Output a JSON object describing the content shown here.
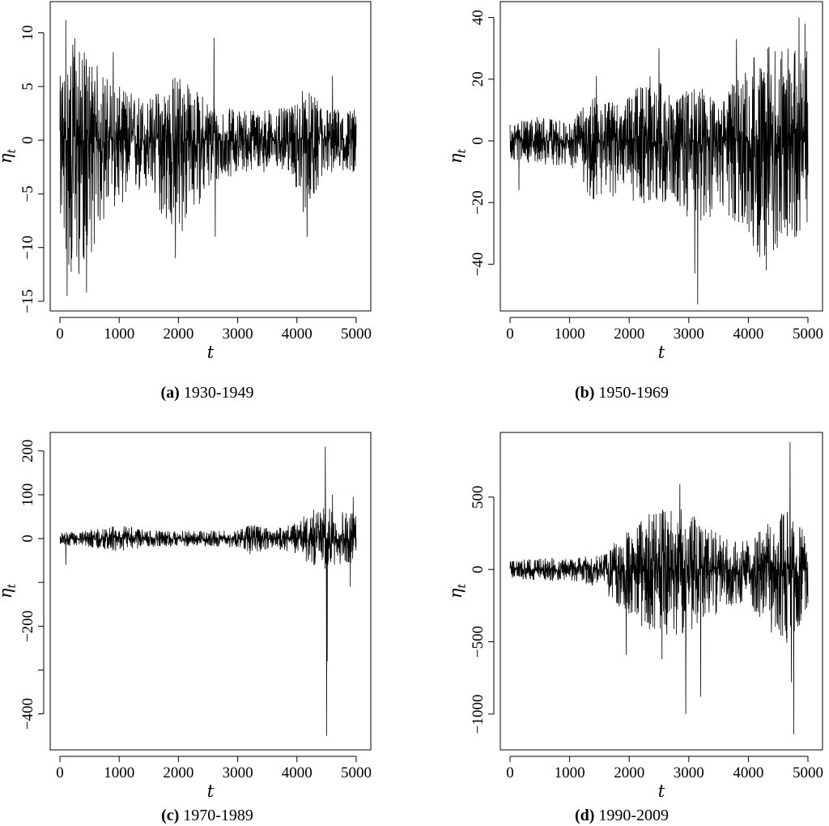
{
  "chart_data": [
    {
      "type": "line",
      "panel_letter": "(a)",
      "caption": "1930-1949",
      "xlabel": "t",
      "ylabel": "η",
      "ylabel_sub": "t",
      "xlim": [
        0,
        5000
      ],
      "ylim": [
        -15,
        12
      ],
      "xticks": [
        0,
        1000,
        2000,
        3000,
        4000,
        5000
      ],
      "yticks": [
        -15,
        -10,
        -5,
        0,
        5,
        10
      ],
      "ytick_labels": [
        "−15",
        "−10",
        "−5",
        "0",
        "5",
        "10"
      ],
      "envelope": {
        "t": [
          0,
          200,
          500,
          800,
          1000,
          1500,
          1900,
          2000,
          2200,
          2500,
          2700,
          3000,
          3500,
          3900,
          4100,
          4300,
          4600,
          5000
        ],
        "upper": [
          6,
          9,
          8,
          6,
          5,
          4,
          6,
          7,
          5,
          4,
          3,
          3,
          3,
          3,
          5,
          4,
          3,
          3
        ],
        "lower": [
          -8,
          -14,
          -11,
          -7,
          -6,
          -5,
          -9,
          -10,
          -7,
          -5,
          -4,
          -3,
          -3,
          -3,
          -7,
          -5,
          -3,
          -3
        ]
      },
      "spikes": [
        [
          100,
          11.2
        ],
        [
          120,
          -14.5
        ],
        [
          250,
          9.5
        ],
        [
          450,
          -14.2
        ],
        [
          900,
          8.2
        ],
        [
          1950,
          -11
        ],
        [
          2600,
          9.5
        ],
        [
          2620,
          -9
        ],
        [
          4170,
          -9
        ],
        [
          4600,
          6
        ]
      ]
    },
    {
      "type": "line",
      "panel_letter": "(b)",
      "caption": "1950-1969",
      "xlabel": "t",
      "ylabel": "η",
      "ylabel_sub": "t",
      "xlim": [
        0,
        5000
      ],
      "ylim": [
        -52,
        42
      ],
      "xticks": [
        0,
        1000,
        2000,
        3000,
        4000,
        5000
      ],
      "yticks": [
        -40,
        -20,
        0,
        20,
        40
      ],
      "ytick_labels": [
        "−40",
        "−20",
        "0",
        "20",
        "40"
      ],
      "envelope": {
        "t": [
          0,
          500,
          1000,
          1400,
          1800,
          2400,
          2800,
          3100,
          3500,
          3900,
          4200,
          4600,
          5000
        ],
        "upper": [
          6,
          8,
          6,
          15,
          12,
          22,
          15,
          20,
          12,
          25,
          30,
          32,
          30
        ],
        "lower": [
          -6,
          -8,
          -8,
          -20,
          -18,
          -22,
          -20,
          -30,
          -22,
          -30,
          -38,
          -35,
          -30
        ]
      },
      "spikes": [
        [
          150,
          -16
        ],
        [
          1450,
          21
        ],
        [
          2500,
          30
        ],
        [
          3150,
          -53
        ],
        [
          3100,
          -43
        ],
        [
          3800,
          33
        ],
        [
          4300,
          -42
        ],
        [
          4850,
          40
        ],
        [
          4950,
          38
        ]
      ]
    },
    {
      "type": "line",
      "panel_letter": "(c)",
      "caption": "1970-1989",
      "xlabel": "t",
      "ylabel": "η",
      "ylabel_sub": "t",
      "xlim": [
        0,
        5000
      ],
      "ylim": [
        -460,
        220
      ],
      "xticks": [
        0,
        1000,
        2000,
        3000,
        4000,
        5000
      ],
      "yticks": [
        -400,
        -300,
        -200,
        -100,
        0,
        100,
        200
      ],
      "ytick_labels": [
        "−400",
        "",
        "−200",
        "",
        "0",
        "100",
        "200"
      ],
      "envelope": {
        "t": [
          0,
          500,
          1000,
          1500,
          2000,
          2500,
          3000,
          3200,
          3600,
          4000,
          4300,
          4600,
          5000
        ],
        "upper": [
          15,
          20,
          30,
          20,
          18,
          18,
          20,
          35,
          20,
          40,
          70,
          70,
          60
        ],
        "lower": [
          -15,
          -20,
          -30,
          -20,
          -18,
          -18,
          -20,
          -40,
          -20,
          -40,
          -70,
          -70,
          -60
        ]
      },
      "spikes": [
        [
          100,
          -60
        ],
        [
          4480,
          210
        ],
        [
          4500,
          -450
        ],
        [
          4510,
          -280
        ],
        [
          4600,
          100
        ],
        [
          4900,
          -110
        ],
        [
          4950,
          95
        ]
      ]
    },
    {
      "type": "line",
      "panel_letter": "(d)",
      "caption": "1990-2009",
      "xlabel": "t",
      "ylabel": "η",
      "ylabel_sub": "t",
      "xlim": [
        0,
        5000
      ],
      "ylim": [
        -1180,
        880
      ],
      "xticks": [
        0,
        1000,
        2000,
        3000,
        4000,
        5000
      ],
      "yticks": [
        -1000,
        -500,
        0,
        500
      ],
      "ytick_labels": [
        "−1000",
        "−500",
        "0",
        "500"
      ],
      "envelope": {
        "t": [
          0,
          500,
          1000,
          1500,
          1800,
          2200,
          2600,
          3000,
          3300,
          3700,
          4000,
          4400,
          4700,
          5000
        ],
        "upper": [
          60,
          80,
          80,
          100,
          200,
          350,
          450,
          400,
          300,
          200,
          200,
          350,
          450,
          200
        ],
        "lower": [
          -60,
          -80,
          -80,
          -120,
          -250,
          -400,
          -450,
          -450,
          -350,
          -250,
          -250,
          -450,
          -550,
          -250
        ]
      },
      "spikes": [
        [
          1950,
          -590
        ],
        [
          2550,
          -620
        ],
        [
          2850,
          590
        ],
        [
          2950,
          -1000
        ],
        [
          3200,
          -880
        ],
        [
          4700,
          880
        ],
        [
          4760,
          -1140
        ],
        [
          4720,
          -780
        ]
      ]
    }
  ]
}
